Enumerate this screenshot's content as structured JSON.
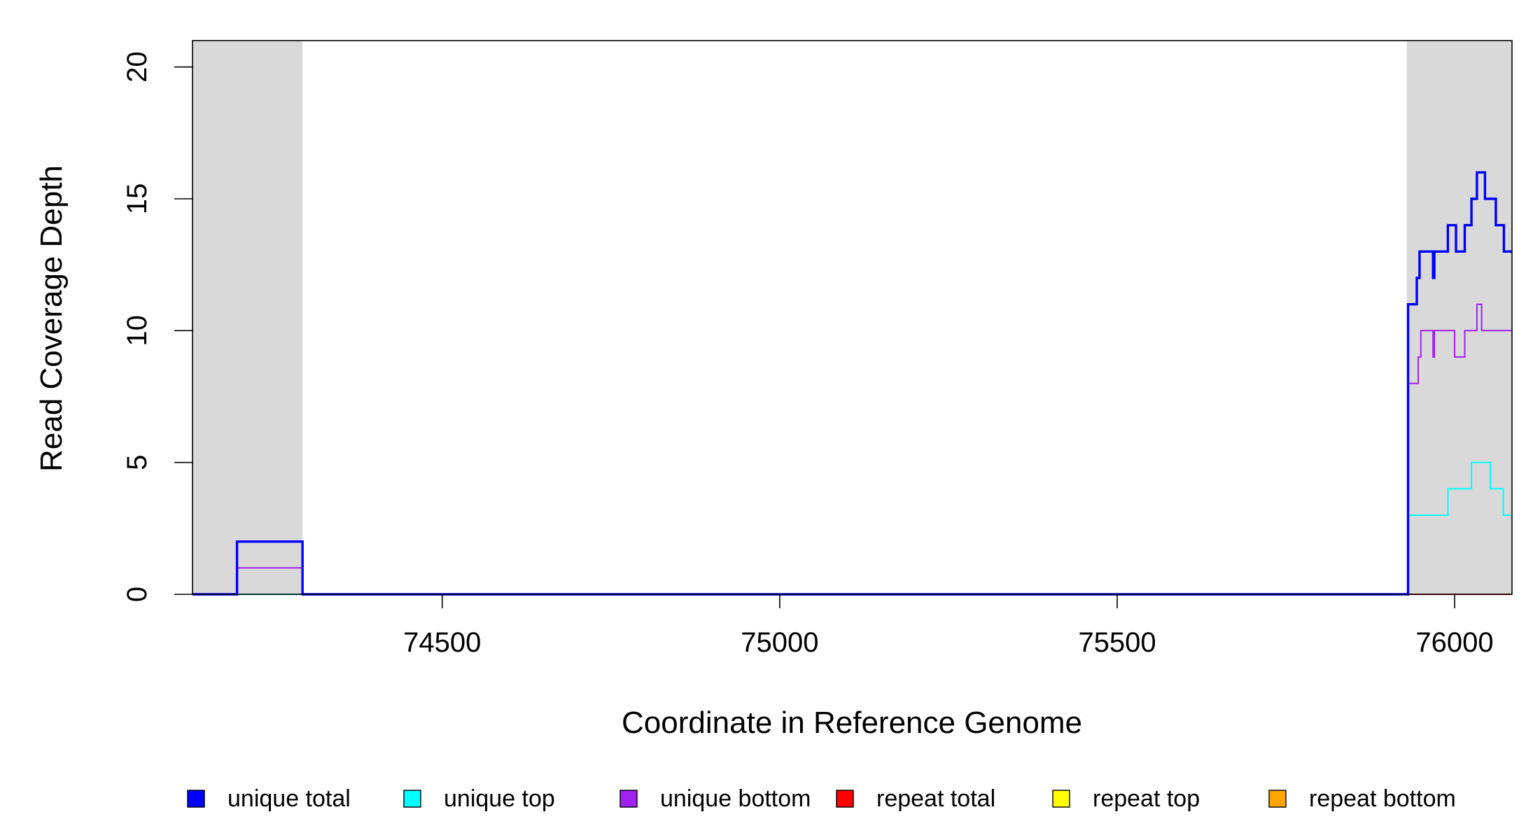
{
  "chart_data": {
    "type": "line",
    "title": "",
    "xlabel": "Coordinate in Reference Genome",
    "ylabel": "Read Coverage Depth",
    "xlim": [
      74130,
      76085
    ],
    "ylim": [
      0,
      21
    ],
    "x_ticks": [
      74500,
      75000,
      75500,
      76000
    ],
    "x_tick_labels": [
      "74500",
      "75000",
      "75500",
      "76000"
    ],
    "y_ticks": [
      0,
      5,
      10,
      15,
      20
    ],
    "y_tick_labels": [
      "0",
      "5",
      "10",
      "15",
      "20"
    ],
    "grid": false,
    "legend_position": "bottom",
    "shaded_regions": [
      {
        "x0": 74130,
        "x1": 74293,
        "color": "#d9d9d9"
      },
      {
        "x0": 75929,
        "x1": 76085,
        "color": "#d9d9d9"
      }
    ],
    "series": [
      {
        "name": "unique total",
        "color": "#0000ff",
        "x": [
          74130,
          74196,
          74196,
          74293,
          74293,
          75931,
          75931,
          75944,
          75944,
          75948,
          75948,
          75953,
          75953,
          75968,
          75968,
          75970,
          75970,
          75990,
          75990,
          76002,
          76002,
          76015,
          76015,
          76025,
          76025,
          76033,
          76033,
          76045,
          76045,
          76061,
          76061,
          76073,
          76073,
          76085
        ],
        "y": [
          0,
          0,
          2,
          2,
          0,
          0,
          11,
          11,
          12,
          12,
          13,
          13,
          13,
          13,
          12,
          12,
          13,
          13,
          14,
          14,
          13,
          13,
          14,
          14,
          15,
          15,
          16,
          16,
          15,
          15,
          14,
          14,
          13,
          13
        ]
      },
      {
        "name": "unique top",
        "color": "#00ffff",
        "x": [
          74130,
          75931,
          75931,
          75990,
          75990,
          76025,
          76025,
          76053,
          76053,
          76072,
          76072,
          76085
        ],
        "y": [
          0,
          0,
          3,
          3,
          4,
          4,
          5,
          5,
          4,
          4,
          3,
          3
        ]
      },
      {
        "name": "unique bottom",
        "color": "#a020f0",
        "x": [
          74130,
          74196,
          74196,
          74293,
          74293,
          75931,
          75931,
          75946,
          75946,
          75950,
          75950,
          75953,
          75953,
          75968,
          75968,
          75970,
          75970,
          76000,
          76000,
          76015,
          76015,
          76033,
          76033,
          76040,
          76040,
          76085
        ],
        "y": [
          0,
          0,
          1,
          1,
          0,
          0,
          8,
          8,
          9,
          9,
          10,
          10,
          10,
          10,
          9,
          9,
          10,
          10,
          9,
          9,
          10,
          10,
          11,
          11,
          10,
          10
        ]
      },
      {
        "name": "repeat total",
        "color": "#ff0000",
        "x": [
          74130,
          76085
        ],
        "y": [
          0,
          0
        ]
      },
      {
        "name": "repeat top",
        "color": "#ffff00",
        "x": [
          74130,
          76085
        ],
        "y": [
          0,
          0
        ]
      },
      {
        "name": "repeat bottom",
        "color": "#ffa500",
        "x": [
          74130,
          76085
        ],
        "y": [
          0,
          0
        ]
      }
    ]
  }
}
